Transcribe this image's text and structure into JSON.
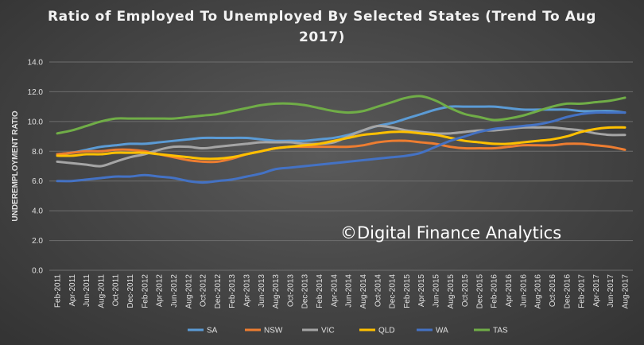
{
  "chart_data": {
    "type": "line",
    "title": "Ratio of Employed To Unemployed By Selected States (Trend To Aug 2017)",
    "ylabel": "UNDEREMPLOYMENT RATIO",
    "xlabel": "",
    "ylim": [
      0,
      14
    ],
    "yticks": [
      "0.0",
      "2.0",
      "4.0",
      "6.0",
      "8.0",
      "10.0",
      "12.0",
      "14.0"
    ],
    "grid": true,
    "legend_position": "bottom",
    "watermark": "©Digital Finance Analytics",
    "categories": [
      "Feb-2011",
      "Apr-2011",
      "Jun-2011",
      "Aug-2011",
      "Oct-2011",
      "Dec-2011",
      "Feb-2012",
      "Apr-2012",
      "Jun-2012",
      "Aug-2012",
      "Oct-2012",
      "Dec-2012",
      "Feb-2013",
      "Apr-2013",
      "Jun-2013",
      "Aug-2013",
      "Oct-2013",
      "Dec-2013",
      "Feb-2014",
      "Apr-2014",
      "Jun-2014",
      "Aug-2014",
      "Oct-2014",
      "Dec-2014",
      "Feb-2015",
      "Apr-2015",
      "Jun-2015",
      "Aug-2015",
      "Oct-2015",
      "Dec-2015",
      "Feb-2016",
      "Apr-2016",
      "Jun-2016",
      "Aug-2016",
      "Oct-2016",
      "Dec-2016",
      "Feb-2017",
      "Apr-2017",
      "Jun-2017",
      "Aug-2017"
    ],
    "series": [
      {
        "name": "SA",
        "color": "#5b9bd5",
        "values": [
          7.8,
          7.9,
          8.1,
          8.3,
          8.4,
          8.5,
          8.5,
          8.6,
          8.7,
          8.8,
          8.9,
          8.9,
          8.9,
          8.9,
          8.8,
          8.7,
          8.7,
          8.7,
          8.8,
          8.9,
          9.1,
          9.4,
          9.7,
          9.9,
          10.2,
          10.5,
          10.8,
          11.0,
          11.0,
          11.0,
          11.0,
          10.9,
          10.8,
          10.8,
          10.8,
          10.8,
          10.7,
          10.7,
          10.7,
          10.6
        ]
      },
      {
        "name": "NSW",
        "color": "#ed7d31",
        "values": [
          7.8,
          7.9,
          8.0,
          8.0,
          8.1,
          8.1,
          8.0,
          7.8,
          7.6,
          7.4,
          7.3,
          7.3,
          7.5,
          7.8,
          8.0,
          8.2,
          8.3,
          8.3,
          8.3,
          8.3,
          8.3,
          8.4,
          8.6,
          8.7,
          8.7,
          8.6,
          8.5,
          8.3,
          8.2,
          8.2,
          8.2,
          8.3,
          8.4,
          8.4,
          8.4,
          8.5,
          8.5,
          8.4,
          8.3,
          8.1
        ]
      },
      {
        "name": "VIC",
        "color": "#a5a5a5",
        "values": [
          7.3,
          7.2,
          7.1,
          7.0,
          7.3,
          7.6,
          7.8,
          8.1,
          8.3,
          8.3,
          8.2,
          8.3,
          8.4,
          8.5,
          8.6,
          8.6,
          8.6,
          8.5,
          8.5,
          8.6,
          9.0,
          9.4,
          9.7,
          9.6,
          9.4,
          9.3,
          9.2,
          9.2,
          9.3,
          9.4,
          9.4,
          9.5,
          9.6,
          9.6,
          9.6,
          9.5,
          9.4,
          9.2,
          9.1,
          9.1
        ]
      },
      {
        "name": "QLD",
        "color": "#ffc000",
        "values": [
          7.7,
          7.7,
          7.8,
          7.8,
          7.9,
          7.9,
          7.9,
          7.8,
          7.7,
          7.6,
          7.5,
          7.5,
          7.6,
          7.8,
          8.0,
          8.2,
          8.3,
          8.4,
          8.5,
          8.7,
          8.9,
          9.1,
          9.2,
          9.3,
          9.3,
          9.2,
          9.1,
          8.9,
          8.7,
          8.6,
          8.5,
          8.5,
          8.6,
          8.7,
          8.8,
          9.0,
          9.3,
          9.5,
          9.6,
          9.6
        ]
      },
      {
        "name": "WA",
        "color": "#4472c4",
        "values": [
          6.0,
          6.0,
          6.1,
          6.2,
          6.3,
          6.3,
          6.4,
          6.3,
          6.2,
          6.0,
          5.9,
          6.0,
          6.1,
          6.3,
          6.5,
          6.8,
          6.9,
          7.0,
          7.1,
          7.2,
          7.3,
          7.4,
          7.5,
          7.6,
          7.7,
          7.9,
          8.3,
          8.7,
          9.0,
          9.3,
          9.5,
          9.6,
          9.7,
          9.8,
          10.0,
          10.3,
          10.5,
          10.6,
          10.6,
          10.6
        ]
      },
      {
        "name": "TAS",
        "color": "#70ad47",
        "values": [
          9.2,
          9.4,
          9.7,
          10.0,
          10.2,
          10.2,
          10.2,
          10.2,
          10.2,
          10.3,
          10.4,
          10.5,
          10.7,
          10.9,
          11.1,
          11.2,
          11.2,
          11.1,
          10.9,
          10.7,
          10.6,
          10.7,
          11.0,
          11.3,
          11.6,
          11.7,
          11.4,
          10.9,
          10.5,
          10.3,
          10.1,
          10.2,
          10.4,
          10.7,
          11.0,
          11.2,
          11.2,
          11.3,
          11.4,
          11.6
        ]
      }
    ]
  }
}
